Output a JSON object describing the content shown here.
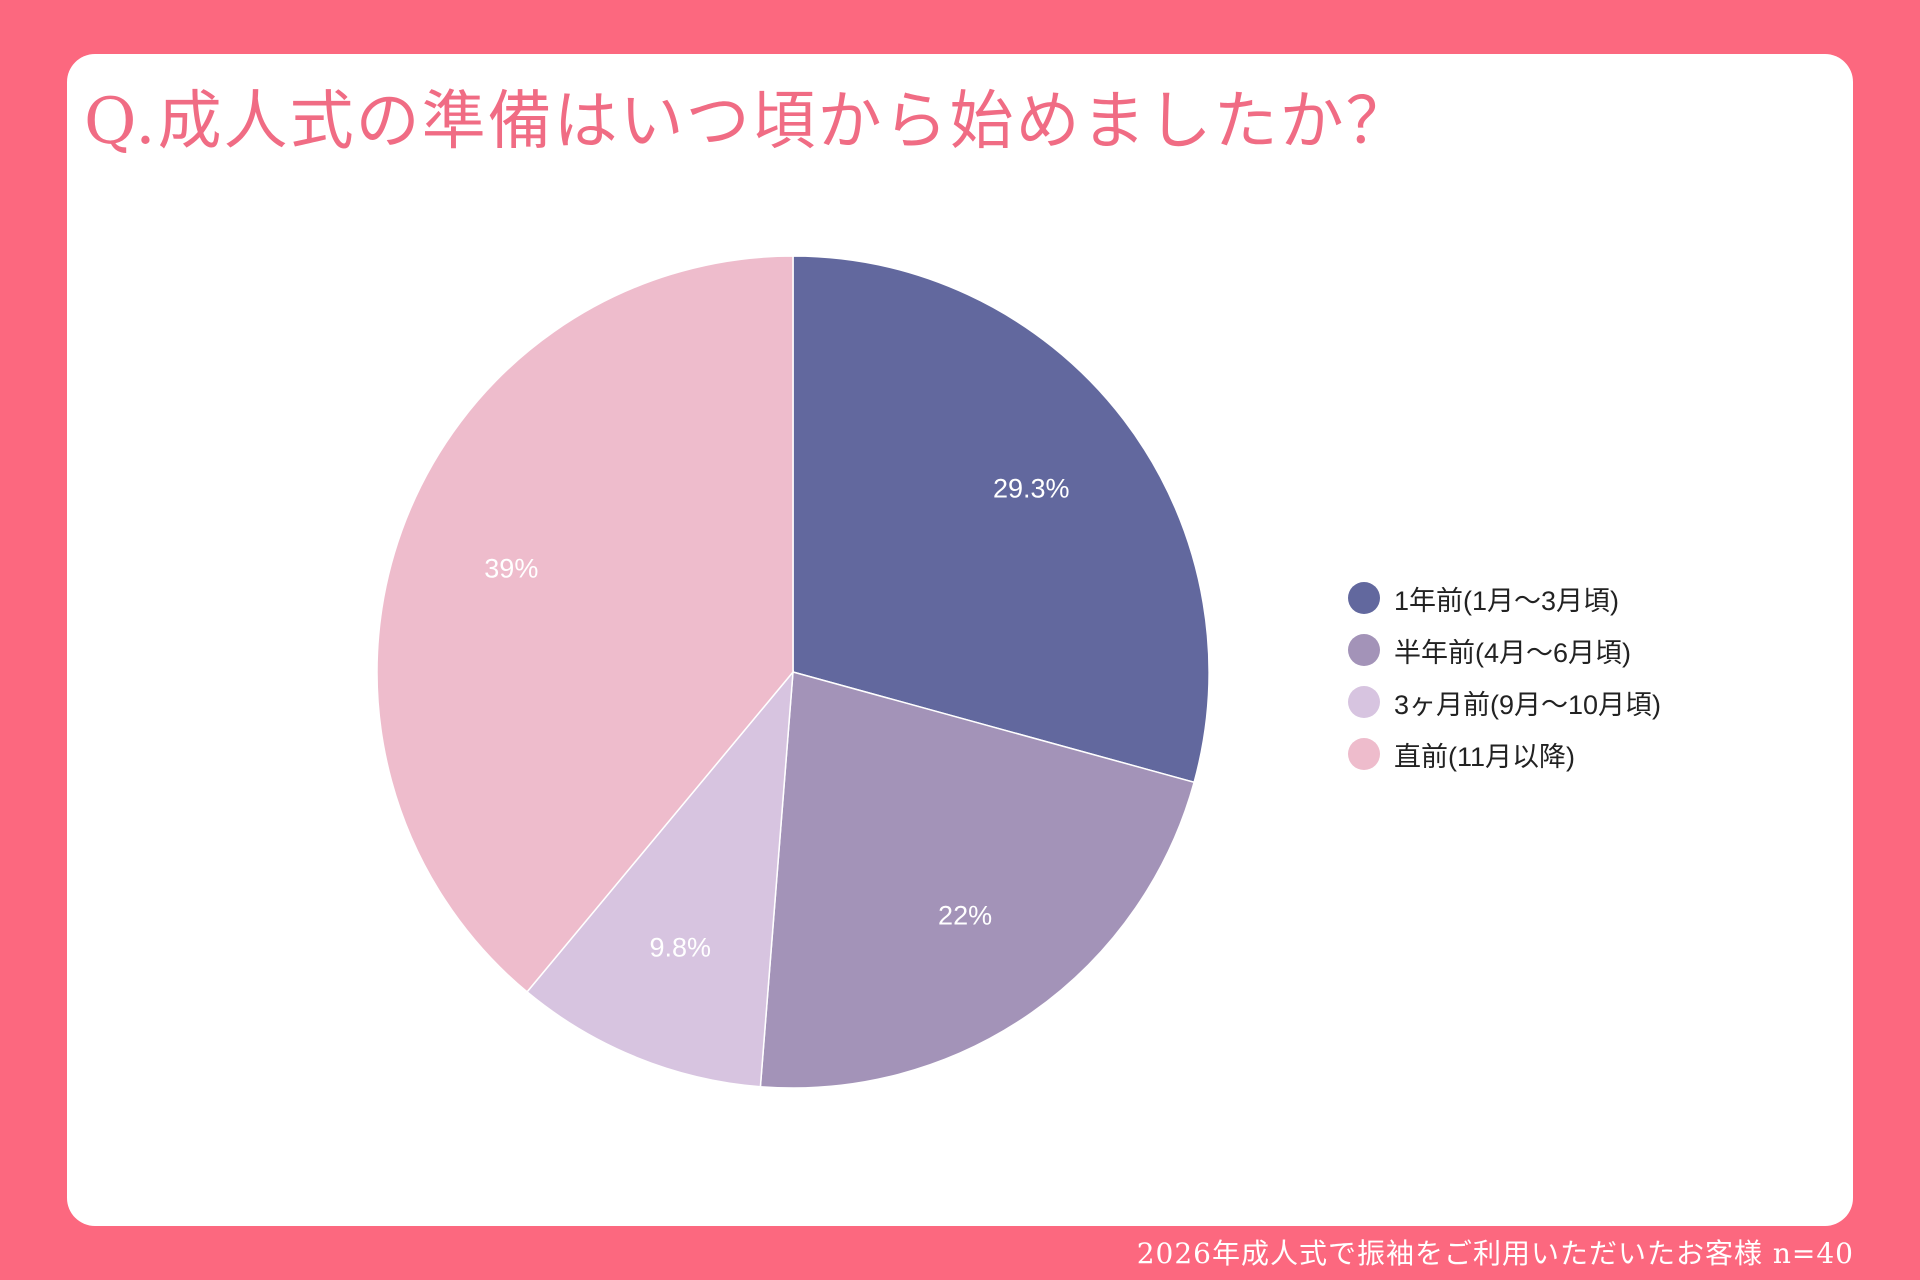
{
  "title": "Q.成人式の準備はいつ頃から始めましたか？",
  "footer": "2026年成人式で振袖をご利用いただいたお客様  n=40",
  "chart_data": {
    "type": "pie",
    "categories": [
      "1年前(1月〜3月頃)",
      "半年前(4月〜6月頃)",
      "3ヶ月前(9月〜10月頃)",
      "直前(11月以降)"
    ],
    "values": [
      29.3,
      22,
      9.8,
      39
    ],
    "data_labels": [
      "29.3%",
      "22%",
      "9.8%",
      "39%"
    ],
    "colors": [
      "#62689e",
      "#a393b8",
      "#d7c4e0",
      "#eebccc"
    ],
    "legend_position": "right"
  }
}
